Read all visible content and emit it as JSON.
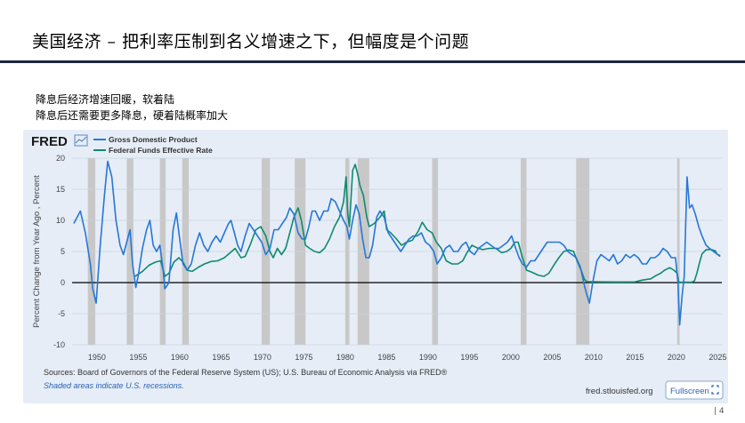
{
  "slide": {
    "title": "美国经济 – 把利率压制到名义增速之下，但幅度是个问题",
    "notes": [
      "降息后经济增速回暖，软着陆",
      "降息后还需要更多降息，硬着陆概率加大"
    ],
    "page_number": "| 4"
  },
  "fred": {
    "logo": "FRED",
    "logo_icon": "line-chart-icon",
    "source": "Sources: Board of Governors of the Federal Reserve System (US); U.S. Bureau of Economic Analysis via FRED®",
    "recession_note": "Shaded areas indicate U.S. recessions.",
    "url": "fred.stlouisfed.org",
    "fullscreen_label": "Fullscreen",
    "fullscreen_icon": "fullscreen-icon"
  },
  "chart_data": {
    "type": "line",
    "title": "",
    "ylabel": "Percent Change from Year Ago , Percent",
    "xlabel": "",
    "xlim": [
      1947,
      2025.5
    ],
    "ylim": [
      -10,
      20
    ],
    "x_ticks": [
      1950,
      1955,
      1960,
      1965,
      1970,
      1975,
      1980,
      1985,
      1990,
      1995,
      2000,
      2005,
      2010,
      2015,
      2020,
      2025
    ],
    "y_ticks": [
      20,
      15,
      10,
      5,
      0,
      -5,
      -10
    ],
    "grid": "horizontal",
    "legend": "top-left",
    "colors": {
      "gdp": "#2777d6",
      "ffr": "#0e8a6f",
      "recession": "#c8c8c8",
      "zero_line": "#000000"
    },
    "recessions": [
      [
        1948.9,
        1949.8
      ],
      [
        1953.6,
        1954.4
      ],
      [
        1957.6,
        1958.3
      ],
      [
        1960.3,
        1961.1
      ],
      [
        1969.9,
        1970.9
      ],
      [
        1973.9,
        1975.2
      ],
      [
        1980.0,
        1980.5
      ],
      [
        1981.5,
        1982.9
      ],
      [
        1990.5,
        1991.2
      ],
      [
        2001.2,
        2001.9
      ],
      [
        2007.9,
        2009.5
      ],
      [
        2020.1,
        2020.4
      ]
    ],
    "series": [
      {
        "name": "Gross Domestic Product",
        "color": "#2777d6",
        "points": [
          [
            1947.2,
            9.5
          ],
          [
            1948.0,
            11.5
          ],
          [
            1948.6,
            8
          ],
          [
            1949.2,
            3
          ],
          [
            1949.5,
            -1
          ],
          [
            1949.9,
            -3.3
          ],
          [
            1950.4,
            6
          ],
          [
            1950.9,
            14
          ],
          [
            1951.3,
            19.5
          ],
          [
            1951.8,
            17
          ],
          [
            1952.3,
            10
          ],
          [
            1952.8,
            6
          ],
          [
            1953.2,
            4.5
          ],
          [
            1953.7,
            7
          ],
          [
            1954.0,
            8.5
          ],
          [
            1954.3,
            3
          ],
          [
            1954.7,
            -0.8
          ],
          [
            1955.0,
            1.2
          ],
          [
            1955.5,
            5.5
          ],
          [
            1956.0,
            8.5
          ],
          [
            1956.4,
            10
          ],
          [
            1956.8,
            6
          ],
          [
            1957.2,
            5
          ],
          [
            1957.6,
            6
          ],
          [
            1958.0,
            2
          ],
          [
            1958.2,
            -1
          ],
          [
            1958.7,
            0
          ],
          [
            1959.2,
            8.5
          ],
          [
            1959.6,
            11.2
          ],
          [
            1960.0,
            7
          ],
          [
            1960.4,
            3
          ],
          [
            1960.9,
            2
          ],
          [
            1961.4,
            3
          ],
          [
            1961.9,
            6
          ],
          [
            1962.4,
            8
          ],
          [
            1962.9,
            6
          ],
          [
            1963.4,
            5
          ],
          [
            1963.9,
            6.5
          ],
          [
            1964.4,
            7.5
          ],
          [
            1964.9,
            6.5
          ],
          [
            1965.4,
            8
          ],
          [
            1965.9,
            9.5
          ],
          [
            1966.2,
            10
          ],
          [
            1966.6,
            8
          ],
          [
            1967.0,
            6
          ],
          [
            1967.4,
            5
          ],
          [
            1967.9,
            7.5
          ],
          [
            1968.4,
            9.5
          ],
          [
            1968.9,
            8.5
          ],
          [
            1969.4,
            7.5
          ],
          [
            1969.9,
            6.5
          ],
          [
            1970.4,
            4.5
          ],
          [
            1970.9,
            5.5
          ],
          [
            1971.4,
            8.5
          ],
          [
            1971.9,
            8.5
          ],
          [
            1972.4,
            9.5
          ],
          [
            1972.9,
            10.5
          ],
          [
            1973.3,
            12
          ],
          [
            1973.8,
            11
          ],
          [
            1974.3,
            8
          ],
          [
            1974.8,
            7
          ],
          [
            1975.2,
            7
          ],
          [
            1975.6,
            9
          ],
          [
            1976.0,
            11.5
          ],
          [
            1976.4,
            11.5
          ],
          [
            1976.9,
            10
          ],
          [
            1977.4,
            11.5
          ],
          [
            1977.9,
            11.5
          ],
          [
            1978.3,
            13.5
          ],
          [
            1978.8,
            13
          ],
          [
            1979.3,
            11.5
          ],
          [
            1979.8,
            10
          ],
          [
            1980.2,
            9
          ],
          [
            1980.5,
            7
          ],
          [
            1980.9,
            10
          ],
          [
            1981.3,
            12.5
          ],
          [
            1981.7,
            11
          ],
          [
            1982.1,
            7
          ],
          [
            1982.5,
            4
          ],
          [
            1982.9,
            4
          ],
          [
            1983.3,
            6
          ],
          [
            1983.8,
            10.5
          ],
          [
            1984.2,
            11.5
          ],
          [
            1984.7,
            10.5
          ],
          [
            1985.2,
            8
          ],
          [
            1985.7,
            7
          ],
          [
            1986.2,
            6
          ],
          [
            1986.7,
            5
          ],
          [
            1987.2,
            6
          ],
          [
            1987.7,
            7
          ],
          [
            1988.2,
            7.5
          ],
          [
            1988.7,
            7.5
          ],
          [
            1989.2,
            8
          ],
          [
            1989.7,
            6.5
          ],
          [
            1990.2,
            6
          ],
          [
            1990.7,
            5
          ],
          [
            1991.1,
            3
          ],
          [
            1991.6,
            4
          ],
          [
            1992.1,
            5.5
          ],
          [
            1992.6,
            6
          ],
          [
            1993.1,
            5
          ],
          [
            1993.6,
            5
          ],
          [
            1994.1,
            6
          ],
          [
            1994.6,
            6.5
          ],
          [
            1995.1,
            5
          ],
          [
            1995.6,
            4.5
          ],
          [
            1996.1,
            5.5
          ],
          [
            1996.6,
            6
          ],
          [
            1997.1,
            6.5
          ],
          [
            1997.6,
            6
          ],
          [
            1998.1,
            5.5
          ],
          [
            1998.6,
            5.5
          ],
          [
            1999.1,
            6
          ],
          [
            1999.6,
            6.5
          ],
          [
            2000.1,
            7.5
          ],
          [
            2000.6,
            5.5
          ],
          [
            2001.0,
            4
          ],
          [
            2001.4,
            3
          ],
          [
            2001.9,
            2.5
          ],
          [
            2002.4,
            3.5
          ],
          [
            2002.9,
            3.5
          ],
          [
            2003.4,
            4.5
          ],
          [
            2003.9,
            5.5
          ],
          [
            2004.4,
            6.5
          ],
          [
            2004.9,
            6.5
          ],
          [
            2005.4,
            6.5
          ],
          [
            2005.9,
            6.5
          ],
          [
            2006.4,
            6
          ],
          [
            2006.9,
            5
          ],
          [
            2007.4,
            4.5
          ],
          [
            2007.9,
            4
          ],
          [
            2008.4,
            2.5
          ],
          [
            2008.9,
            -0.5
          ],
          [
            2009.2,
            -2
          ],
          [
            2009.5,
            -3.3
          ],
          [
            2009.9,
            0
          ],
          [
            2010.4,
            3.5
          ],
          [
            2010.9,
            4.5
          ],
          [
            2011.4,
            4
          ],
          [
            2011.9,
            3.5
          ],
          [
            2012.4,
            4.5
          ],
          [
            2012.9,
            3
          ],
          [
            2013.4,
            3.5
          ],
          [
            2013.9,
            4.5
          ],
          [
            2014.4,
            4
          ],
          [
            2014.9,
            4.5
          ],
          [
            2015.4,
            4
          ],
          [
            2015.9,
            3
          ],
          [
            2016.4,
            3
          ],
          [
            2016.9,
            4
          ],
          [
            2017.4,
            4
          ],
          [
            2017.9,
            4.5
          ],
          [
            2018.4,
            5.5
          ],
          [
            2018.9,
            5
          ],
          [
            2019.4,
            4
          ],
          [
            2019.9,
            4
          ],
          [
            2020.2,
            0
          ],
          [
            2020.4,
            -6.8
          ],
          [
            2020.7,
            -2
          ],
          [
            2020.95,
            1
          ],
          [
            2021.3,
            17
          ],
          [
            2021.6,
            12
          ],
          [
            2021.9,
            12.5
          ],
          [
            2022.3,
            11
          ],
          [
            2022.7,
            9
          ],
          [
            2023.1,
            7.5
          ],
          [
            2023.6,
            6
          ],
          [
            2024.0,
            5.5
          ],
          [
            2024.5,
            5
          ],
          [
            2025.0,
            4.5
          ],
          [
            2025.3,
            4.2
          ]
        ]
      },
      {
        "name": "Federal Funds Effective Rate",
        "color": "#0e8a6f",
        "points": [
          [
            1954.6,
            1
          ],
          [
            1955.5,
            1.8
          ],
          [
            1956.3,
            2.8
          ],
          [
            1957.1,
            3.3
          ],
          [
            1957.7,
            3.5
          ],
          [
            1958.2,
            1
          ],
          [
            1958.7,
            1.5
          ],
          [
            1959.3,
            3.3
          ],
          [
            1959.9,
            4
          ],
          [
            1960.4,
            3.3
          ],
          [
            1960.9,
            2
          ],
          [
            1961.5,
            1.8
          ],
          [
            1962.3,
            2.5
          ],
          [
            1963.0,
            3
          ],
          [
            1963.8,
            3.4
          ],
          [
            1964.6,
            3.5
          ],
          [
            1965.4,
            4
          ],
          [
            1966.1,
            4.8
          ],
          [
            1966.7,
            5.5
          ],
          [
            1967.4,
            4
          ],
          [
            1967.9,
            4.2
          ],
          [
            1968.5,
            6
          ],
          [
            1969.2,
            8.5
          ],
          [
            1969.8,
            9
          ],
          [
            1970.4,
            7.5
          ],
          [
            1970.9,
            5
          ],
          [
            1971.3,
            4
          ],
          [
            1971.8,
            5.5
          ],
          [
            1972.3,
            4.5
          ],
          [
            1972.8,
            5.5
          ],
          [
            1973.3,
            8
          ],
          [
            1973.8,
            10.5
          ],
          [
            1974.3,
            12
          ],
          [
            1974.7,
            10
          ],
          [
            1975.2,
            6
          ],
          [
            1975.7,
            5.5
          ],
          [
            1976.3,
            5
          ],
          [
            1976.9,
            4.8
          ],
          [
            1977.5,
            5.5
          ],
          [
            1978.1,
            7
          ],
          [
            1978.7,
            9
          ],
          [
            1979.3,
            10.5
          ],
          [
            1979.8,
            13
          ],
          [
            1980.1,
            17
          ],
          [
            1980.3,
            11
          ],
          [
            1980.5,
            9
          ],
          [
            1980.9,
            18
          ],
          [
            1981.2,
            19
          ],
          [
            1981.5,
            17.5
          ],
          [
            1981.8,
            15.5
          ],
          [
            1982.2,
            14
          ],
          [
            1982.6,
            10.5
          ],
          [
            1982.9,
            9
          ],
          [
            1983.5,
            9.5
          ],
          [
            1984.2,
            10.5
          ],
          [
            1984.7,
            11.5
          ],
          [
            1985.0,
            8.5
          ],
          [
            1985.5,
            8
          ],
          [
            1986.2,
            7
          ],
          [
            1986.8,
            6
          ],
          [
            1987.4,
            6.5
          ],
          [
            1988.1,
            6.8
          ],
          [
            1988.8,
            8.2
          ],
          [
            1989.3,
            9.7
          ],
          [
            1989.9,
            8.5
          ],
          [
            1990.5,
            8
          ],
          [
            1991.0,
            6.5
          ],
          [
            1991.6,
            5.5
          ],
          [
            1992.2,
            3.5
          ],
          [
            1992.9,
            3
          ],
          [
            1993.6,
            3
          ],
          [
            1994.2,
            3.5
          ],
          [
            1994.7,
            4.8
          ],
          [
            1995.3,
            6
          ],
          [
            1995.9,
            5.6
          ],
          [
            1996.6,
            5.3
          ],
          [
            1997.4,
            5.5
          ],
          [
            1998.2,
            5.5
          ],
          [
            1998.9,
            4.8
          ],
          [
            1999.5,
            5
          ],
          [
            2000.0,
            5.5
          ],
          [
            2000.5,
            6.5
          ],
          [
            2000.9,
            6.5
          ],
          [
            2001.3,
            4.5
          ],
          [
            2001.9,
            2
          ],
          [
            2002.5,
            1.7
          ],
          [
            2003.3,
            1.2
          ],
          [
            2004.0,
            1
          ],
          [
            2004.6,
            1.5
          ],
          [
            2005.2,
            2.8
          ],
          [
            2005.8,
            4
          ],
          [
            2006.4,
            5
          ],
          [
            2007.0,
            5.25
          ],
          [
            2007.6,
            5
          ],
          [
            2008.0,
            3.5
          ],
          [
            2008.5,
            2
          ],
          [
            2008.9,
            0.5
          ],
          [
            2009.2,
            0.15
          ],
          [
            2011.0,
            0.12
          ],
          [
            2013.0,
            0.1
          ],
          [
            2015.0,
            0.12
          ],
          [
            2015.9,
            0.4
          ],
          [
            2016.9,
            0.6
          ],
          [
            2017.5,
            1.1
          ],
          [
            2018.1,
            1.5
          ],
          [
            2018.6,
            2
          ],
          [
            2019.2,
            2.4
          ],
          [
            2019.7,
            2
          ],
          [
            2020.1,
            1.5
          ],
          [
            2020.3,
            0.05
          ],
          [
            2021.9,
            0.08
          ],
          [
            2022.2,
            0.3
          ],
          [
            2022.5,
            1.6
          ],
          [
            2022.8,
            3.2
          ],
          [
            2023.1,
            4.6
          ],
          [
            2023.6,
            5.3
          ],
          [
            2024.2,
            5.33
          ],
          [
            2024.7,
            5.1
          ],
          [
            2024.9,
            4.6
          ],
          [
            2025.3,
            4.33
          ]
        ]
      }
    ]
  }
}
